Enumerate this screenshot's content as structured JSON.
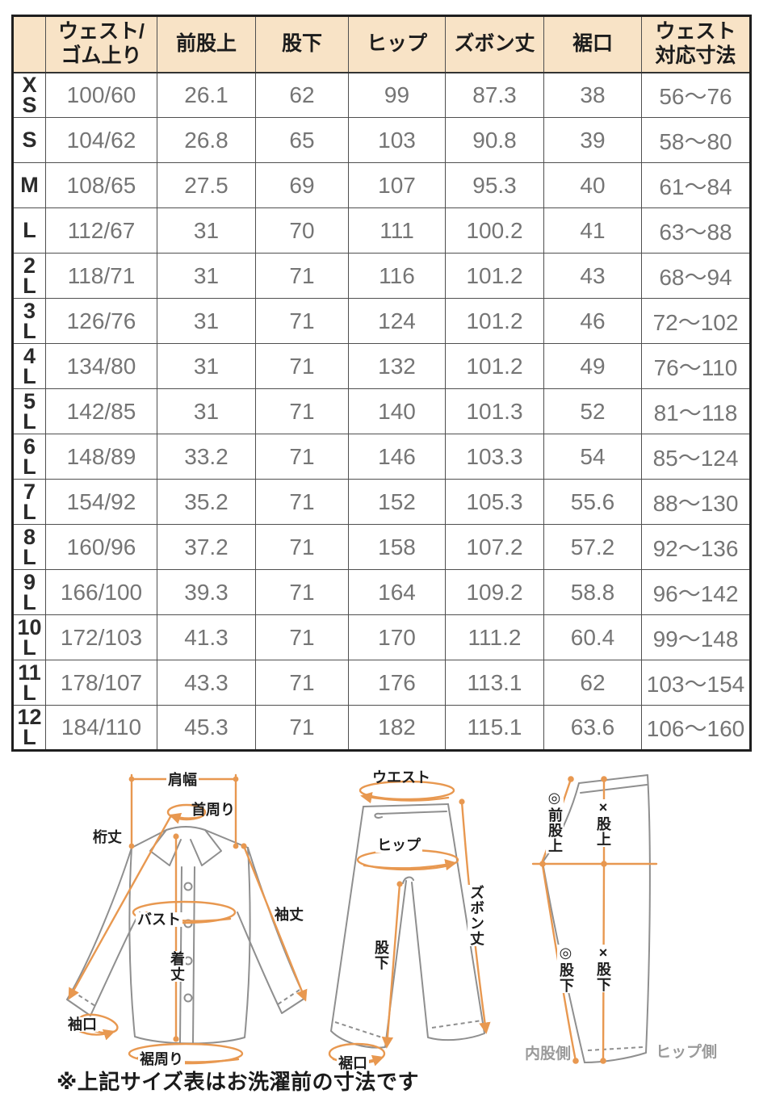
{
  "colors": {
    "header_bg": "#f8e3c6",
    "accent_orange": "#e89850",
    "garment_line_gray": "#8f8f8f",
    "muted_label_gray": "#9a9a9a",
    "table_border": "#1f1f1f",
    "value_text": "#757575"
  },
  "table": {
    "header": [
      {
        "lines": []
      },
      {
        "lines": [
          "ウェスト/",
          "ゴム上り"
        ]
      },
      {
        "lines": [
          "前股上"
        ]
      },
      {
        "lines": [
          "股下"
        ]
      },
      {
        "lines": [
          "ヒップ"
        ]
      },
      {
        "lines": [
          "ズボン丈"
        ]
      },
      {
        "lines": [
          "裾口"
        ]
      },
      {
        "lines": [
          "ウェスト",
          "対応寸法"
        ]
      }
    ],
    "rows": [
      {
        "size": "XS",
        "size_lines": [
          "X",
          "S"
        ],
        "values": [
          "100/60",
          "26.1",
          "62",
          "99",
          "87.3",
          "38",
          "56〜76"
        ]
      },
      {
        "size": "S",
        "size_lines": [
          "S"
        ],
        "values": [
          "104/62",
          "26.8",
          "65",
          "103",
          "90.8",
          "39",
          "58〜80"
        ]
      },
      {
        "size": "M",
        "size_lines": [
          "M"
        ],
        "values": [
          "108/65",
          "27.5",
          "69",
          "107",
          "95.3",
          "40",
          "61〜84"
        ]
      },
      {
        "size": "L",
        "size_lines": [
          "L"
        ],
        "values": [
          "112/67",
          "31",
          "70",
          "111",
          "100.2",
          "41",
          "63〜88"
        ]
      },
      {
        "size": "2L",
        "size_lines": [
          "2",
          "L"
        ],
        "values": [
          "118/71",
          "31",
          "71",
          "116",
          "101.2",
          "43",
          "68〜94"
        ]
      },
      {
        "size": "3L",
        "size_lines": [
          "3",
          "L"
        ],
        "values": [
          "126/76",
          "31",
          "71",
          "124",
          "101.2",
          "46",
          "72〜102"
        ]
      },
      {
        "size": "4L",
        "size_lines": [
          "4",
          "L"
        ],
        "values": [
          "134/80",
          "31",
          "71",
          "132",
          "101.2",
          "49",
          "76〜110"
        ]
      },
      {
        "size": "5L",
        "size_lines": [
          "5",
          "L"
        ],
        "values": [
          "142/85",
          "31",
          "71",
          "140",
          "101.3",
          "52",
          "81〜118"
        ]
      },
      {
        "size": "6L",
        "size_lines": [
          "6",
          "L"
        ],
        "values": [
          "148/89",
          "33.2",
          "71",
          "146",
          "103.3",
          "54",
          "85〜124"
        ]
      },
      {
        "size": "7L",
        "size_lines": [
          "7",
          "L"
        ],
        "values": [
          "154/92",
          "35.2",
          "71",
          "152",
          "105.3",
          "55.6",
          "88〜130"
        ]
      },
      {
        "size": "8L",
        "size_lines": [
          "8",
          "L"
        ],
        "values": [
          "160/96",
          "37.2",
          "71",
          "158",
          "107.2",
          "57.2",
          "92〜136"
        ]
      },
      {
        "size": "9L",
        "size_lines": [
          "9",
          "L"
        ],
        "values": [
          "166/100",
          "39.3",
          "71",
          "164",
          "109.2",
          "58.8",
          "96〜142"
        ]
      },
      {
        "size": "10L",
        "size_lines": [
          "10",
          "L"
        ],
        "values": [
          "172/103",
          "41.3",
          "71",
          "170",
          "111.2",
          "60.4",
          "99〜148"
        ]
      },
      {
        "size": "11L",
        "size_lines": [
          "11",
          "L"
        ],
        "values": [
          "178/107",
          "43.3",
          "71",
          "176",
          "113.1",
          "62",
          "103〜154"
        ]
      },
      {
        "size": "12L",
        "size_lines": [
          "12",
          "L"
        ],
        "values": [
          "184/110",
          "45.3",
          "71",
          "182",
          "115.1",
          "63.6",
          "106〜160"
        ]
      }
    ]
  },
  "diagrams": {
    "shirt": {
      "shoulder_width": "肩幅",
      "neck_girth": "首周り",
      "sleeve_from_center": "桁丈",
      "bust": "バスト",
      "body_length": "着丈",
      "sleeve_length": "袖丈",
      "cuff_opening": "袖口",
      "hem_girth": "裾周り"
    },
    "pants_front": {
      "waist": "ウエスト",
      "hip": "ヒップ",
      "pants_length": "ズボン丈",
      "inseam": "股下",
      "hem_opening": "裾口"
    },
    "pants_side": {
      "front_rise": "◎前股上",
      "rise": "×股上",
      "inseam_front": "◎股下",
      "inseam_back": "×股下",
      "inner_thigh_side": "内股側",
      "hip_side": "ヒップ側"
    }
  },
  "note": "※上記サイズ表はお洗濯前の寸法です"
}
